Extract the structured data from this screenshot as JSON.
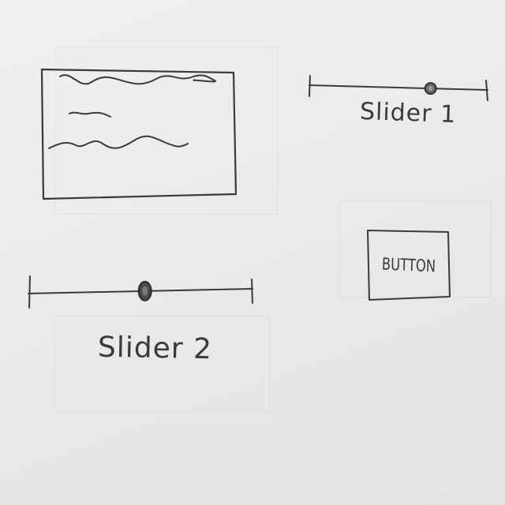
{
  "sketch": {
    "text_panel": {
      "lines": [
        "wavy placeholder line",
        "short placeholder line",
        "wavy placeholder line"
      ]
    },
    "slider_1": {
      "label": "Slider 1",
      "value": 0.68
    },
    "slider_2": {
      "label": "Slider 2",
      "value": 0.52
    },
    "button": {
      "label": "BUTTON"
    },
    "colors": {
      "paper": "#ececea",
      "ink": "#3a3a3a"
    }
  }
}
